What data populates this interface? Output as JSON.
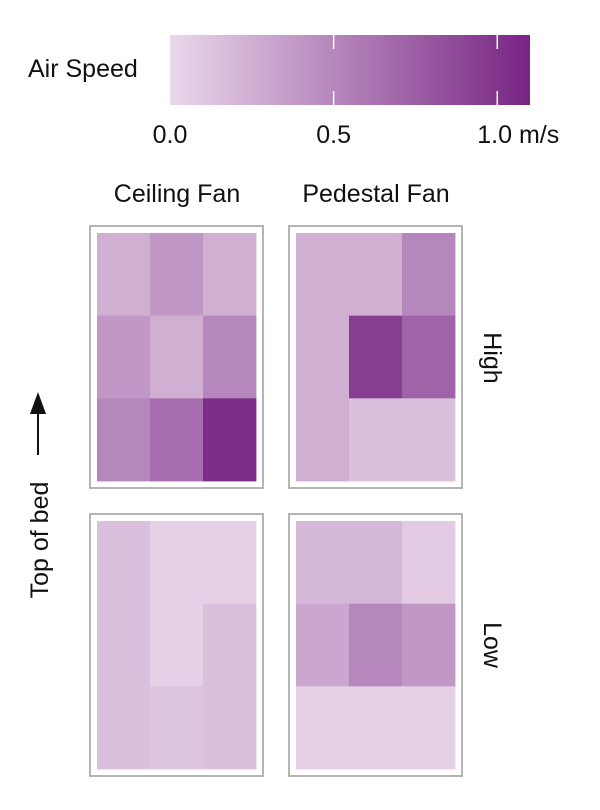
{
  "chart_data": {
    "type": "heatmap",
    "colorbar": {
      "title": "Air Speed",
      "min": 0.0,
      "max": 1.1,
      "ticks": [
        {
          "value": 0.0,
          "label": "0.0"
        },
        {
          "value": 0.5,
          "label": "0.5"
        },
        {
          "value": 1.0,
          "label": "1.0 m/s"
        }
      ],
      "color_low": "#ead8eb",
      "color_high": "#772583"
    },
    "columns": [
      "Ceiling Fan",
      "Pedestal Fan"
    ],
    "rows": [
      "High",
      "Low"
    ],
    "side_label": "Top of bed",
    "panels": [
      {
        "column": "Ceiling Fan",
        "row": "High",
        "grid": [
          [
            0.25,
            0.4,
            0.25
          ],
          [
            0.4,
            0.25,
            0.5
          ],
          [
            0.5,
            0.65,
            1.05
          ]
        ]
      },
      {
        "column": "Pedestal Fan",
        "row": "High",
        "grid": [
          [
            0.25,
            0.25,
            0.5
          ],
          [
            0.25,
            0.95,
            0.72
          ],
          [
            0.25,
            0.15,
            0.15
          ]
        ]
      },
      {
        "column": "Ceiling Fan",
        "row": "Low",
        "grid": [
          [
            0.15,
            0.05,
            0.05
          ],
          [
            0.15,
            0.05,
            0.15
          ],
          [
            0.15,
            0.12,
            0.15
          ]
        ]
      },
      {
        "column": "Pedestal Fan",
        "row": "Low",
        "grid": [
          [
            0.2,
            0.2,
            0.08
          ],
          [
            0.3,
            0.5,
            0.4
          ],
          [
            0.05,
            0.05,
            0.05
          ]
        ]
      }
    ]
  }
}
